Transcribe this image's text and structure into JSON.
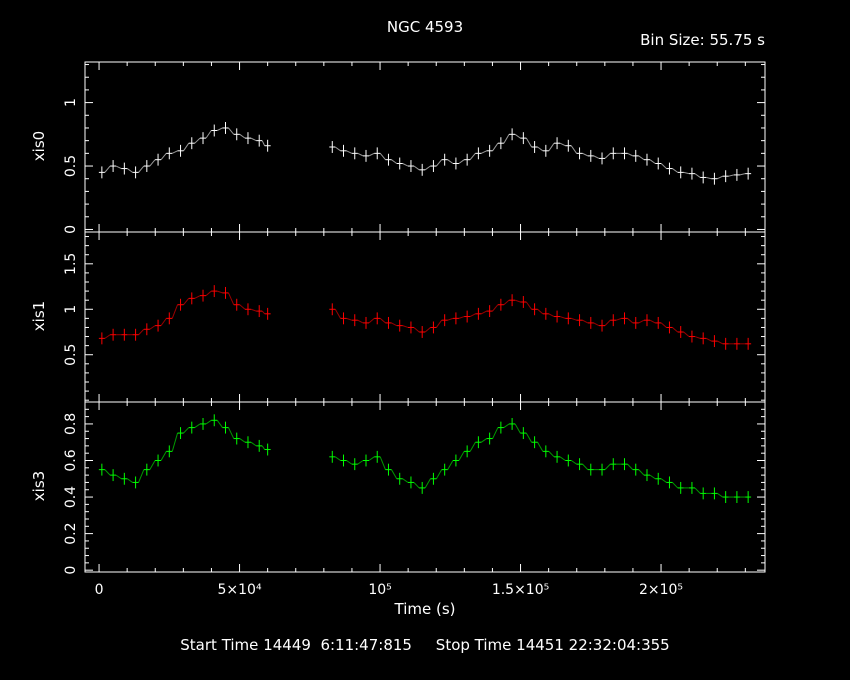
{
  "chart_data": {
    "type": "line",
    "title": "NGC 4593",
    "subtitle": "Bin Size: 55.75 s",
    "xlabel": "Time (s)",
    "xlim": [
      -5000,
      237000
    ],
    "x_tick_labels": [
      "0",
      "5×10⁴",
      "10⁵",
      "1.5×10⁵",
      "2×10⁵"
    ],
    "panels": [
      {
        "name": "xis0",
        "ylabel": "xis0",
        "color": "#ffffff",
        "ylim": [
          -0.02,
          1.32
        ],
        "y_ticks": [
          0,
          0.5,
          1
        ],
        "y_tick_labels": [
          "0",
          "0.5",
          "1"
        ],
        "x": [
          1000,
          5000,
          9000,
          13000,
          17000,
          21000,
          25000,
          29000,
          33000,
          37000,
          41000,
          45000,
          49000,
          53000,
          57000,
          60000,
          83000,
          87000,
          91000,
          95000,
          99000,
          103000,
          107000,
          111000,
          115000,
          119000,
          123000,
          127000,
          131000,
          135000,
          139000,
          143000,
          147000,
          151000,
          155000,
          159000,
          163000,
          167000,
          171000,
          175000,
          179000,
          183000,
          187000,
          191000,
          195000,
          199000,
          203000,
          207000,
          211000,
          215000,
          219000,
          223000,
          227000,
          231000
        ],
        "values": [
          0.45,
          0.5,
          0.48,
          0.45,
          0.5,
          0.55,
          0.6,
          0.62,
          0.68,
          0.72,
          0.78,
          0.8,
          0.75,
          0.72,
          0.7,
          0.66,
          0.65,
          0.62,
          0.6,
          0.58,
          0.6,
          0.55,
          0.52,
          0.5,
          0.47,
          0.5,
          0.55,
          0.52,
          0.55,
          0.6,
          0.62,
          0.68,
          0.75,
          0.72,
          0.65,
          0.62,
          0.68,
          0.66,
          0.6,
          0.58,
          0.56,
          0.6,
          0.6,
          0.58,
          0.55,
          0.52,
          0.48,
          0.45,
          0.44,
          0.41,
          0.4,
          0.42,
          0.43,
          0.44
        ]
      },
      {
        "name": "xis1",
        "ylabel": "xis1",
        "color": "#ff0000",
        "ylim": [
          -0.02,
          1.85
        ],
        "y_ticks": [
          0.5,
          1,
          1.5
        ],
        "y_tick_labels": [
          "0.5",
          "1",
          "1.5"
        ],
        "x": [
          1000,
          5000,
          9000,
          13000,
          17000,
          21000,
          25000,
          29000,
          33000,
          37000,
          41000,
          45000,
          49000,
          53000,
          57000,
          60000,
          83000,
          87000,
          91000,
          95000,
          99000,
          103000,
          107000,
          111000,
          115000,
          119000,
          123000,
          127000,
          131000,
          135000,
          139000,
          143000,
          147000,
          151000,
          155000,
          159000,
          163000,
          167000,
          171000,
          175000,
          179000,
          183000,
          187000,
          191000,
          195000,
          199000,
          203000,
          207000,
          211000,
          215000,
          219000,
          223000,
          227000,
          231000
        ],
        "values": [
          0.68,
          0.72,
          0.72,
          0.72,
          0.78,
          0.82,
          0.9,
          1.05,
          1.12,
          1.15,
          1.2,
          1.18,
          1.05,
          1.0,
          0.98,
          0.95,
          1.0,
          0.9,
          0.88,
          0.85,
          0.9,
          0.85,
          0.82,
          0.8,
          0.75,
          0.8,
          0.88,
          0.9,
          0.92,
          0.95,
          0.98,
          1.05,
          1.1,
          1.08,
          1.0,
          0.95,
          0.92,
          0.9,
          0.88,
          0.85,
          0.82,
          0.88,
          0.9,
          0.85,
          0.88,
          0.85,
          0.8,
          0.75,
          0.7,
          0.68,
          0.65,
          0.62,
          0.62,
          0.62
        ]
      },
      {
        "name": "xis3",
        "ylabel": "xis3",
        "color": "#00ff00",
        "ylim": [
          -0.01,
          0.92
        ],
        "y_ticks": [
          0,
          0.2,
          0.4,
          0.6,
          0.8
        ],
        "y_tick_labels": [
          "0",
          "0.2",
          "0.4",
          "0.6",
          "0.8"
        ],
        "x": [
          1000,
          5000,
          9000,
          13000,
          17000,
          21000,
          25000,
          29000,
          33000,
          37000,
          41000,
          45000,
          49000,
          53000,
          57000,
          60000,
          83000,
          87000,
          91000,
          95000,
          99000,
          103000,
          107000,
          111000,
          115000,
          119000,
          123000,
          127000,
          131000,
          135000,
          139000,
          143000,
          147000,
          151000,
          155000,
          159000,
          163000,
          167000,
          171000,
          175000,
          179000,
          183000,
          187000,
          191000,
          195000,
          199000,
          203000,
          207000,
          211000,
          215000,
          219000,
          223000,
          227000,
          231000
        ],
        "values": [
          0.55,
          0.52,
          0.5,
          0.48,
          0.55,
          0.6,
          0.65,
          0.75,
          0.78,
          0.8,
          0.82,
          0.78,
          0.72,
          0.7,
          0.68,
          0.66,
          0.62,
          0.6,
          0.58,
          0.6,
          0.62,
          0.55,
          0.5,
          0.48,
          0.45,
          0.5,
          0.55,
          0.6,
          0.65,
          0.7,
          0.72,
          0.78,
          0.8,
          0.75,
          0.7,
          0.65,
          0.62,
          0.6,
          0.58,
          0.55,
          0.55,
          0.58,
          0.58,
          0.55,
          0.52,
          0.5,
          0.48,
          0.45,
          0.45,
          0.42,
          0.42,
          0.4,
          0.4,
          0.4
        ]
      }
    ]
  },
  "footer": {
    "start_label": "Start Time",
    "start_value": "14449  6:11:47:815",
    "stop_label": "Stop Time",
    "stop_value": "14451 22:32:04:355"
  }
}
